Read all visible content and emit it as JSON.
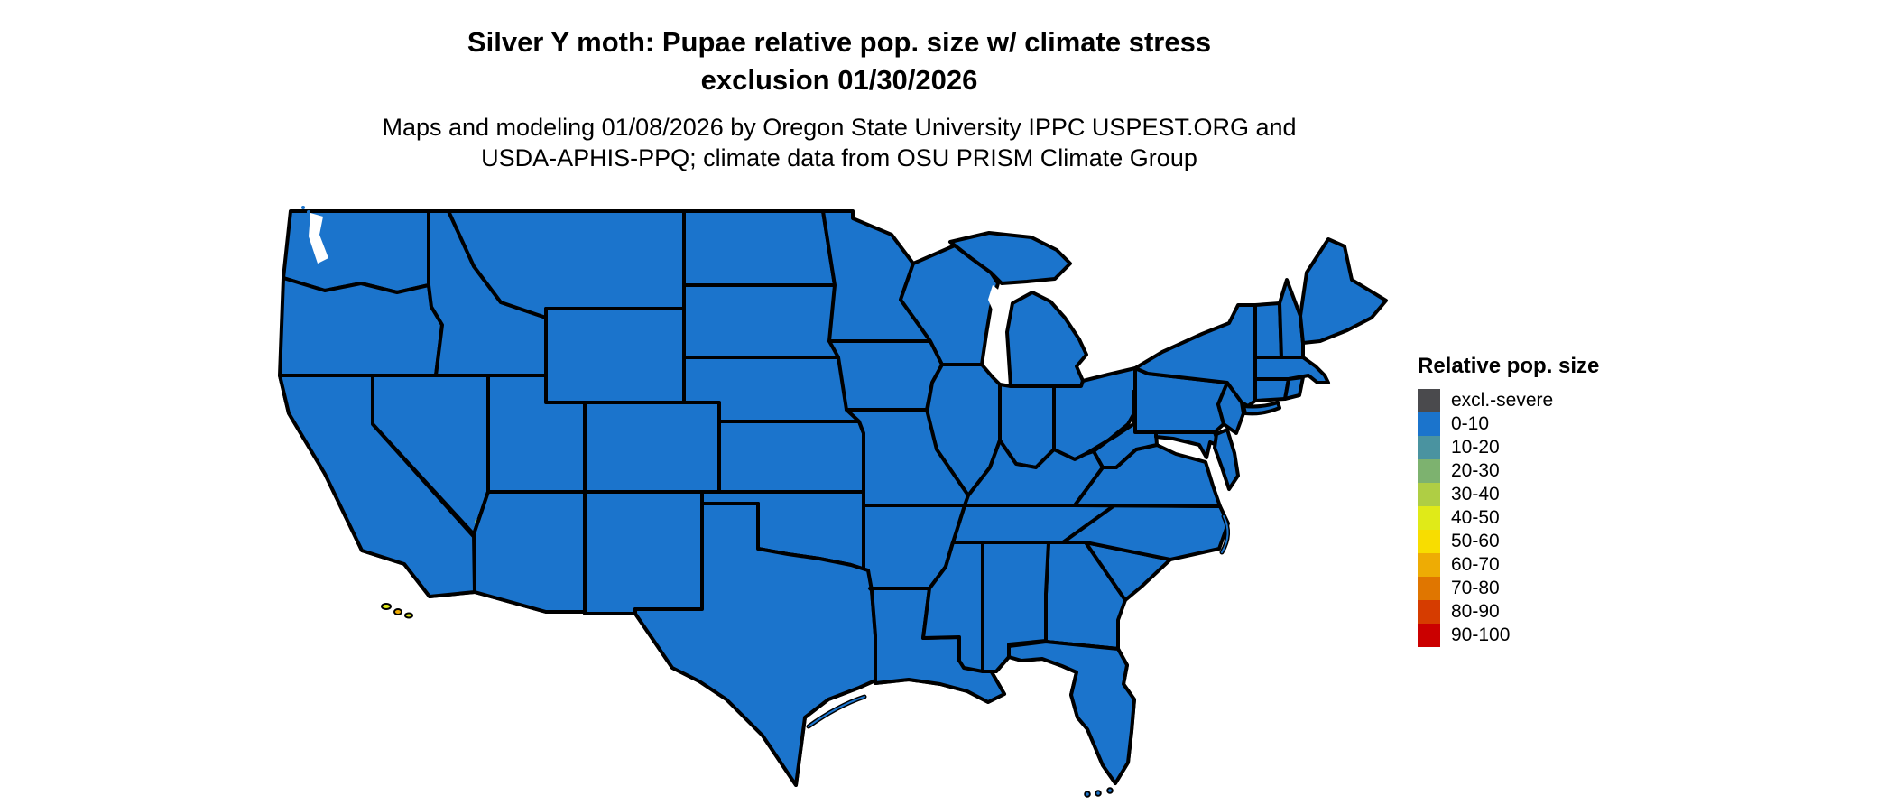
{
  "header": {
    "title_line1": "Silver Y moth: Pupae relative pop. size w/ climate stress",
    "title_line2": "exclusion 01/30/2026",
    "subtitle_line1": "Maps and modeling 01/08/2026 by Oregon State University IPPC USPEST.ORG and",
    "subtitle_line2": "USDA-APHIS-PPQ; climate data from OSU PRISM Climate Group"
  },
  "legend": {
    "title": "Relative pop. size",
    "items": [
      {
        "label": "excl.-severe",
        "color": "#4A4A4D",
        "var": "excl"
      },
      {
        "label": "0-10",
        "color": "#1B74CC",
        "var": "b0"
      },
      {
        "label": "10-20",
        "color": "#4A93A0",
        "var": "b10"
      },
      {
        "label": "20-30",
        "color": "#7DB26F",
        "var": "b20"
      },
      {
        "label": "30-40",
        "color": "#AFCE44",
        "var": "b30"
      },
      {
        "label": "40-50",
        "color": "#E0EA18",
        "var": "b40"
      },
      {
        "label": "50-60",
        "color": "#F8DD00",
        "var": "b50"
      },
      {
        "label": "60-70",
        "color": "#EEAC04",
        "var": "b60"
      },
      {
        "label": "70-80",
        "color": "#E07600",
        "var": "b70"
      },
      {
        "label": "80-90",
        "color": "#D63C00",
        "var": "b80"
      },
      {
        "label": "90-100",
        "color": "#CB0000",
        "var": "b90"
      }
    ]
  },
  "map": {
    "background": "#ffffff",
    "land_fill": "#1B74CC",
    "border_color": "#000000",
    "region": "Contiguous United States with state boundaries"
  }
}
